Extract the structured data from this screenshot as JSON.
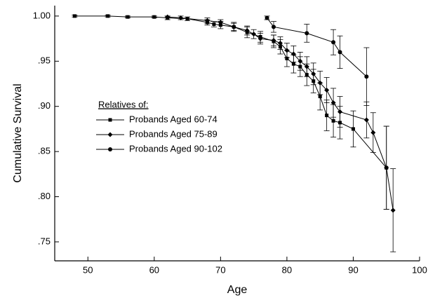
{
  "chart_data": {
    "type": "line",
    "x_label": "Age",
    "y_label": "Cumulative Survival",
    "legend_title": "Relatives of:",
    "legend_position": "left",
    "xlim": [
      45,
      100
    ],
    "xticks": [
      50,
      60,
      70,
      80,
      90,
      100
    ],
    "ylim": [
      0.729,
      1.01
    ],
    "yticks": [
      {
        "value": 0.75,
        "label": ".75"
      },
      {
        "value": 0.8,
        "label": ".80"
      },
      {
        "value": 0.85,
        "label": ".85"
      },
      {
        "value": 0.9,
        "label": ".90"
      },
      {
        "value": 0.95,
        "label": ".95"
      },
      {
        "value": 1,
        "label": "1.00"
      }
    ],
    "series": [
      {
        "name": "Probands Aged 60-74",
        "color": "#000000",
        "marker": "square",
        "x": [
          48,
          53,
          56,
          60,
          62,
          65,
          68,
          69,
          70,
          72,
          74,
          76,
          78,
          79,
          80,
          81,
          82,
          83,
          84,
          85,
          86,
          87,
          88,
          90,
          95
        ],
        "values": [
          1.0,
          1.0,
          0.999,
          0.999,
          0.998,
          0.997,
          0.993,
          0.991,
          0.99,
          0.988,
          0.982,
          0.977,
          0.972,
          0.966,
          0.953,
          0.947,
          0.944,
          0.935,
          0.928,
          0.911,
          0.89,
          0.884,
          0.882,
          0.875,
          0.832
        ],
        "errors": [
          0.001,
          0.001,
          0.001,
          0.001,
          0.002,
          0.002,
          0.003,
          0.003,
          0.004,
          0.005,
          0.006,
          0.006,
          0.007,
          0.008,
          0.009,
          0.01,
          0.011,
          0.012,
          0.013,
          0.015,
          0.017,
          0.018,
          0.018,
          0.02,
          0.046
        ]
      },
      {
        "name": "Probands Aged 75-89",
        "color": "#000000",
        "marker": "diamond",
        "x": [
          62,
          64,
          68,
          70,
          72,
          74,
          75,
          76,
          78,
          79,
          80,
          81,
          82,
          83,
          84,
          85,
          86,
          87,
          88,
          92,
          93,
          95,
          96
        ],
        "values": [
          0.999,
          0.998,
          0.995,
          0.993,
          0.988,
          0.984,
          0.98,
          0.975,
          0.973,
          0.97,
          0.962,
          0.958,
          0.95,
          0.944,
          0.936,
          0.926,
          0.918,
          0.904,
          0.894,
          0.885,
          0.871,
          0.832,
          0.785
        ],
        "errors": [
          0.001,
          0.002,
          0.003,
          0.003,
          0.004,
          0.005,
          0.005,
          0.006,
          0.006,
          0.007,
          0.008,
          0.009,
          0.01,
          0.011,
          0.012,
          0.013,
          0.014,
          0.016,
          0.017,
          0.02,
          0.022,
          0.046,
          0.046
        ]
      },
      {
        "name": "Probands Aged 90-102",
        "color": "#000000",
        "marker": "circle",
        "x": [
          77,
          78,
          83,
          87,
          88,
          92
        ],
        "values": [
          0.998,
          0.988,
          0.981,
          0.971,
          0.96,
          0.933
        ],
        "errors": [
          0.002,
          0.006,
          0.01,
          0.014,
          0.018,
          0.032
        ]
      }
    ]
  }
}
